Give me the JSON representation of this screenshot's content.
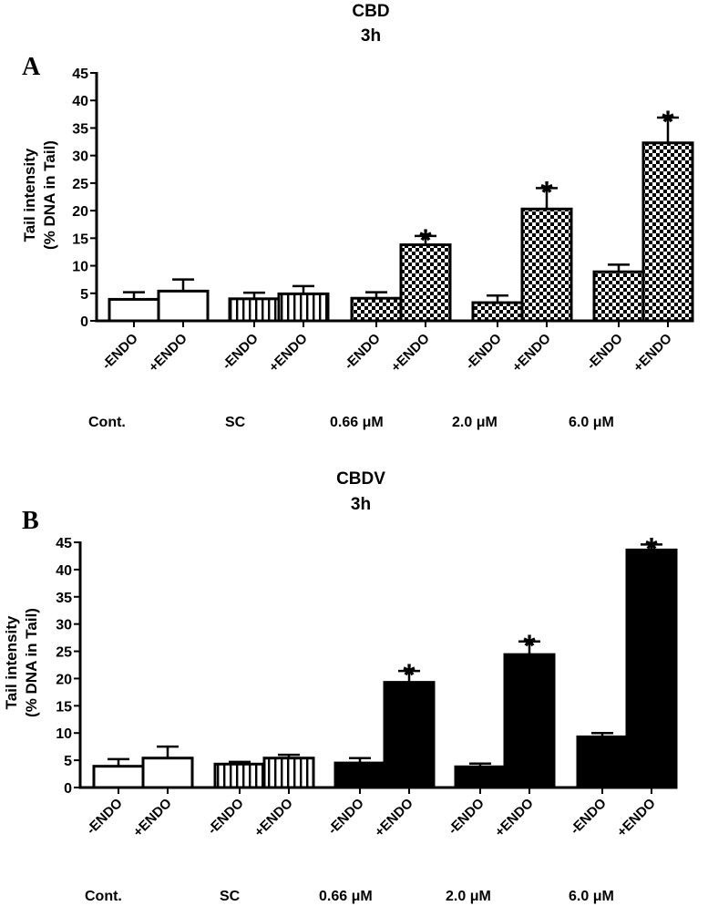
{
  "chart_data": [
    {
      "type": "bar",
      "panel": "A",
      "title": "CBD",
      "subtitle": "3h",
      "ylabel": [
        "Tail intensity",
        "(%  DNA in Tail)"
      ],
      "ylim": [
        0,
        45
      ],
      "yticks": [
        0,
        5,
        10,
        15,
        20,
        25,
        30,
        35,
        40,
        45
      ],
      "groups": [
        "Cont.",
        "SC",
        "0.66 μM",
        "2.0 μM",
        "6.0 μM"
      ],
      "bar_labels": [
        "-ENDO",
        "+ENDO"
      ],
      "bars": [
        {
          "group": 0,
          "label": 0,
          "value": 3.9,
          "error": 1.3,
          "pattern": "open",
          "sig": ""
        },
        {
          "group": 0,
          "label": 1,
          "value": 5.4,
          "error": 2.1,
          "pattern": "open",
          "sig": ""
        },
        {
          "group": 1,
          "label": 0,
          "value": 4.0,
          "error": 1.1,
          "pattern": "stripes",
          "sig": ""
        },
        {
          "group": 1,
          "label": 1,
          "value": 4.9,
          "error": 1.4,
          "pattern": "stripes",
          "sig": ""
        },
        {
          "group": 2,
          "label": 0,
          "value": 4.1,
          "error": 1.1,
          "pattern": "checker",
          "sig": ""
        },
        {
          "group": 2,
          "label": 1,
          "value": 13.8,
          "error": 1.6,
          "pattern": "checker",
          "sig": "*"
        },
        {
          "group": 3,
          "label": 0,
          "value": 3.3,
          "error": 1.3,
          "pattern": "checker",
          "sig": ""
        },
        {
          "group": 3,
          "label": 1,
          "value": 20.3,
          "error": 3.8,
          "pattern": "checker",
          "sig": "*"
        },
        {
          "group": 4,
          "label": 0,
          "value": 8.9,
          "error": 1.3,
          "pattern": "checker",
          "sig": ""
        },
        {
          "group": 4,
          "label": 1,
          "value": 32.3,
          "error": 4.6,
          "pattern": "checker",
          "sig": "*"
        }
      ]
    },
    {
      "type": "bar",
      "panel": "B",
      "title": "CBDV",
      "subtitle": "3h",
      "ylabel": [
        "Tail intensity",
        "(%  DNA in Tail)"
      ],
      "ylim": [
        0,
        45
      ],
      "yticks": [
        0,
        5,
        10,
        15,
        20,
        25,
        30,
        35,
        40,
        45
      ],
      "groups": [
        "Cont.",
        "SC",
        "0.66 μM",
        "2.0 μM",
        "6.0 μM"
      ],
      "bar_labels": [
        "-ENDO",
        "+ENDO"
      ],
      "bars": [
        {
          "group": 0,
          "label": 0,
          "value": 3.9,
          "error": 1.3,
          "pattern": "open",
          "sig": ""
        },
        {
          "group": 0,
          "label": 1,
          "value": 5.4,
          "error": 2.1,
          "pattern": "open",
          "sig": ""
        },
        {
          "group": 1,
          "label": 0,
          "value": 4.3,
          "error": 0.4,
          "pattern": "stripes",
          "sig": ""
        },
        {
          "group": 1,
          "label": 1,
          "value": 5.4,
          "error": 0.6,
          "pattern": "stripes",
          "sig": ""
        },
        {
          "group": 2,
          "label": 0,
          "value": 4.5,
          "error": 0.9,
          "pattern": "solid",
          "sig": ""
        },
        {
          "group": 2,
          "label": 1,
          "value": 19.3,
          "error": 2.1,
          "pattern": "solid",
          "sig": "*"
        },
        {
          "group": 3,
          "label": 0,
          "value": 3.8,
          "error": 0.6,
          "pattern": "solid",
          "sig": ""
        },
        {
          "group": 3,
          "label": 1,
          "value": 24.4,
          "error": 2.4,
          "pattern": "solid",
          "sig": "*"
        },
        {
          "group": 4,
          "label": 0,
          "value": 9.3,
          "error": 0.7,
          "pattern": "solid",
          "sig": ""
        },
        {
          "group": 4,
          "label": 1,
          "value": 43.6,
          "error": 1.0,
          "pattern": "solid",
          "sig": "*"
        }
      ]
    }
  ]
}
